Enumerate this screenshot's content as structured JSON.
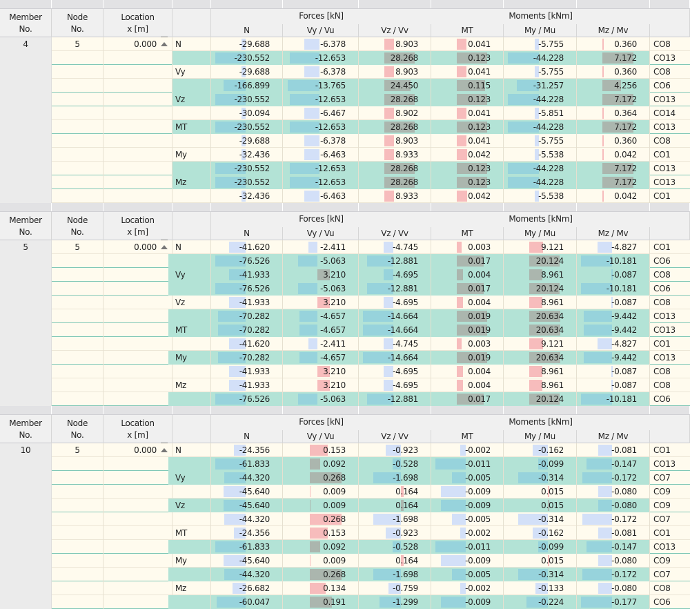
{
  "headers": {
    "member": [
      "Member",
      "No."
    ],
    "node": [
      "Node",
      "No."
    ],
    "location": [
      "Location",
      "x [m]"
    ],
    "forces": "Forces [kN]",
    "moments": "Moments [kNm]",
    "cols": [
      "N",
      "Vy / Vu",
      "Vz / Vv",
      "MT",
      "My / Mu",
      "Mz / Mv"
    ]
  },
  "colors": {
    "row_pale": "#fffbee",
    "row_green": "#b3e3d6",
    "bar_neg_pale": "#d3e0f8",
    "bar_pos_pale": "#f7bcbc",
    "bar_neg_green": "#97d3dc",
    "bar_pos_green": "#abb6ae",
    "header": "#f0f0f0"
  },
  "icons": {
    "location_marker": "support-arrow-icon"
  },
  "sections": [
    {
      "member": "4",
      "node": "5",
      "location": "0.000",
      "rows": [
        {
          "label": "N",
          "green": false,
          "values": [
            -29.688,
            -6.378,
            8.903,
            0.041,
            -5.755,
            0.36
          ],
          "text": [
            "-29.688",
            "-6.378",
            "8.903",
            "0.041",
            "-5.755",
            "0.360"
          ],
          "co": "CO8"
        },
        {
          "label": "",
          "green": true,
          "values": [
            -230.552,
            -12.653,
            28.268,
            0.123,
            -44.228,
            7.172
          ],
          "text": [
            "-230.552",
            "-12.653",
            "28.268",
            "0.123",
            "-44.228",
            "7.172"
          ],
          "co": "CO13"
        },
        {
          "label": "Vy",
          "green": false,
          "values": [
            -29.688,
            -6.378,
            8.903,
            0.041,
            -5.755,
            0.36
          ],
          "text": [
            "-29.688",
            "-6.378",
            "8.903",
            "0.041",
            "-5.755",
            "0.360"
          ],
          "co": "CO8"
        },
        {
          "label": "",
          "green": true,
          "values": [
            -166.899,
            -13.765,
            24.45,
            0.115,
            -31.257,
            4.256
          ],
          "text": [
            "-166.899",
            "-13.765",
            "24.450",
            "0.115",
            "-31.257",
            "4.256"
          ],
          "co": "CO6"
        },
        {
          "label": "Vz",
          "green": true,
          "values": [
            -230.552,
            -12.653,
            28.268,
            0.123,
            -44.228,
            7.172
          ],
          "text": [
            "-230.552",
            "-12.653",
            "28.268",
            "0.123",
            "-44.228",
            "7.172"
          ],
          "co": "CO13"
        },
        {
          "label": "",
          "green": false,
          "values": [
            -30.094,
            -6.467,
            8.902,
            0.041,
            -5.851,
            0.364
          ],
          "text": [
            "-30.094",
            "-6.467",
            "8.902",
            "0.041",
            "-5.851",
            "0.364"
          ],
          "co": "CO14"
        },
        {
          "label": "MT",
          "green": true,
          "values": [
            -230.552,
            -12.653,
            28.268,
            0.123,
            -44.228,
            7.172
          ],
          "text": [
            "-230.552",
            "-12.653",
            "28.268",
            "0.123",
            "-44.228",
            "7.172"
          ],
          "co": "CO13"
        },
        {
          "label": "",
          "green": false,
          "values": [
            -29.688,
            -6.378,
            8.903,
            0.041,
            -5.755,
            0.36
          ],
          "text": [
            "-29.688",
            "-6.378",
            "8.903",
            "0.041",
            "-5.755",
            "0.360"
          ],
          "co": "CO8"
        },
        {
          "label": "My",
          "green": false,
          "values": [
            -32.436,
            -6.463,
            8.933,
            0.042,
            -5.538,
            0.042
          ],
          "text": [
            "-32.436",
            "-6.463",
            "8.933",
            "0.042",
            "-5.538",
            "0.042"
          ],
          "co": "CO1"
        },
        {
          "label": "",
          "green": true,
          "values": [
            -230.552,
            -12.653,
            28.268,
            0.123,
            -44.228,
            7.172
          ],
          "text": [
            "-230.552",
            "-12.653",
            "28.268",
            "0.123",
            "-44.228",
            "7.172"
          ],
          "co": "CO13"
        },
        {
          "label": "Mz",
          "green": true,
          "values": [
            -230.552,
            -12.653,
            28.268,
            0.123,
            -44.228,
            7.172
          ],
          "text": [
            "-230.552",
            "-12.653",
            "28.268",
            "0.123",
            "-44.228",
            "7.172"
          ],
          "co": "CO13"
        },
        {
          "label": "",
          "green": false,
          "values": [
            -32.436,
            -6.463,
            8.933,
            0.042,
            -5.538,
            0.042
          ],
          "text": [
            "-32.436",
            "-6.463",
            "8.933",
            "0.042",
            "-5.538",
            "0.042"
          ],
          "co": "CO1"
        }
      ]
    },
    {
      "member": "5",
      "node": "5",
      "location": "0.000",
      "rows": [
        {
          "label": "N",
          "green": false,
          "values": [
            -41.62,
            -2.411,
            -4.745,
            0.003,
            9.121,
            -4.827
          ],
          "text": [
            "-41.620",
            "-2.411",
            "-4.745",
            "0.003",
            "9.121",
            "-4.827"
          ],
          "co": "CO1"
        },
        {
          "label": "",
          "green": true,
          "values": [
            -76.526,
            -5.063,
            -12.881,
            0.017,
            20.124,
            -10.181
          ],
          "text": [
            "-76.526",
            "-5.063",
            "-12.881",
            "0.017",
            "20.124",
            "-10.181"
          ],
          "co": "CO6"
        },
        {
          "label": "Vy",
          "green": true,
          "values": [
            -41.933,
            3.21,
            -4.695,
            0.004,
            8.961,
            -0.087
          ],
          "text": [
            "-41.933",
            "3.210",
            "-4.695",
            "0.004",
            "8.961",
            "-0.087"
          ],
          "co": "CO8"
        },
        {
          "label": "",
          "green": true,
          "values": [
            -76.526,
            -5.063,
            -12.881,
            0.017,
            20.124,
            -10.181
          ],
          "text": [
            "-76.526",
            "-5.063",
            "-12.881",
            "0.017",
            "20.124",
            "-10.181"
          ],
          "co": "CO6"
        },
        {
          "label": "Vz",
          "green": false,
          "values": [
            -41.933,
            3.21,
            -4.695,
            0.004,
            8.961,
            -0.087
          ],
          "text": [
            "-41.933",
            "3.210",
            "-4.695",
            "0.004",
            "8.961",
            "-0.087"
          ],
          "co": "CO8"
        },
        {
          "label": "",
          "green": true,
          "values": [
            -70.282,
            -4.657,
            -14.664,
            0.019,
            20.634,
            -9.442
          ],
          "text": [
            "-70.282",
            "-4.657",
            "-14.664",
            "0.019",
            "20.634",
            "-9.442"
          ],
          "co": "CO13"
        },
        {
          "label": "MT",
          "green": true,
          "values": [
            -70.282,
            -4.657,
            -14.664,
            0.019,
            20.634,
            -9.442
          ],
          "text": [
            "-70.282",
            "-4.657",
            "-14.664",
            "0.019",
            "20.634",
            "-9.442"
          ],
          "co": "CO13"
        },
        {
          "label": "",
          "green": false,
          "values": [
            -41.62,
            -2.411,
            -4.745,
            0.003,
            9.121,
            -4.827
          ],
          "text": [
            "-41.620",
            "-2.411",
            "-4.745",
            "0.003",
            "9.121",
            "-4.827"
          ],
          "co": "CO1"
        },
        {
          "label": "My",
          "green": true,
          "values": [
            -70.282,
            -4.657,
            -14.664,
            0.019,
            20.634,
            -9.442
          ],
          "text": [
            "-70.282",
            "-4.657",
            "-14.664",
            "0.019",
            "20.634",
            "-9.442"
          ],
          "co": "CO13"
        },
        {
          "label": "",
          "green": false,
          "values": [
            -41.933,
            3.21,
            -4.695,
            0.004,
            8.961,
            -0.087
          ],
          "text": [
            "-41.933",
            "3.210",
            "-4.695",
            "0.004",
            "8.961",
            "-0.087"
          ],
          "co": "CO8"
        },
        {
          "label": "Mz",
          "green": false,
          "values": [
            -41.933,
            3.21,
            -4.695,
            0.004,
            8.961,
            -0.087
          ],
          "text": [
            "-41.933",
            "3.210",
            "-4.695",
            "0.004",
            "8.961",
            "-0.087"
          ],
          "co": "CO8"
        },
        {
          "label": "",
          "green": true,
          "values": [
            -76.526,
            -5.063,
            -12.881,
            0.017,
            20.124,
            -10.181
          ],
          "text": [
            "-76.526",
            "-5.063",
            "-12.881",
            "0.017",
            "20.124",
            "-10.181"
          ],
          "co": "CO6"
        }
      ]
    },
    {
      "member": "10",
      "node": "5",
      "location": "0.000",
      "rows": [
        {
          "label": "N",
          "green": false,
          "values": [
            -24.356,
            0.153,
            -0.923,
            -0.002,
            -0.162,
            -0.081
          ],
          "text": [
            "-24.356",
            "0.153",
            "-0.923",
            "-0.002",
            "-0.162",
            "-0.081"
          ],
          "co": "CO1"
        },
        {
          "label": "",
          "green": true,
          "values": [
            -61.833,
            0.092,
            -0.528,
            -0.011,
            -0.099,
            -0.147
          ],
          "text": [
            "-61.833",
            "0.092",
            "-0.528",
            "-0.011",
            "-0.099",
            "-0.147"
          ],
          "co": "CO13"
        },
        {
          "label": "Vy",
          "green": true,
          "values": [
            -44.32,
            0.268,
            -1.698,
            -0.005,
            -0.314,
            -0.172
          ],
          "text": [
            "-44.320",
            "0.268",
            "-1.698",
            "-0.005",
            "-0.314",
            "-0.172"
          ],
          "co": "CO7"
        },
        {
          "label": "",
          "green": false,
          "values": [
            -45.64,
            0.009,
            0.164,
            -0.009,
            0.015,
            -0.08
          ],
          "text": [
            "-45.640",
            "0.009",
            "0.164",
            "-0.009",
            "0.015",
            "-0.080"
          ],
          "co": "CO9"
        },
        {
          "label": "Vz",
          "green": true,
          "values": [
            -45.64,
            0.009,
            0.164,
            -0.009,
            0.015,
            -0.08
          ],
          "text": [
            "-45.640",
            "0.009",
            "0.164",
            "-0.009",
            "0.015",
            "-0.080"
          ],
          "co": "CO9"
        },
        {
          "label": "",
          "green": false,
          "values": [
            -44.32,
            0.268,
            -1.698,
            -0.005,
            -0.314,
            -0.172
          ],
          "text": [
            "-44.320",
            "0.268",
            "-1.698",
            "-0.005",
            "-0.314",
            "-0.172"
          ],
          "co": "CO7"
        },
        {
          "label": "MT",
          "green": false,
          "values": [
            -24.356,
            0.153,
            -0.923,
            -0.002,
            -0.162,
            -0.081
          ],
          "text": [
            "-24.356",
            "0.153",
            "-0.923",
            "-0.002",
            "-0.162",
            "-0.081"
          ],
          "co": "CO1"
        },
        {
          "label": "",
          "green": true,
          "values": [
            -61.833,
            0.092,
            -0.528,
            -0.011,
            -0.099,
            -0.147
          ],
          "text": [
            "-61.833",
            "0.092",
            "-0.528",
            "-0.011",
            "-0.099",
            "-0.147"
          ],
          "co": "CO13"
        },
        {
          "label": "My",
          "green": false,
          "values": [
            -45.64,
            0.009,
            0.164,
            -0.009,
            0.015,
            -0.08
          ],
          "text": [
            "-45.640",
            "0.009",
            "0.164",
            "-0.009",
            "0.015",
            "-0.080"
          ],
          "co": "CO9"
        },
        {
          "label": "",
          "green": true,
          "values": [
            -44.32,
            0.268,
            -1.698,
            -0.005,
            -0.314,
            -0.172
          ],
          "text": [
            "-44.320",
            "0.268",
            "-1.698",
            "-0.005",
            "-0.314",
            "-0.172"
          ],
          "co": "CO7"
        },
        {
          "label": "Mz",
          "green": false,
          "values": [
            -26.682,
            0.134,
            -0.759,
            -0.002,
            -0.133,
            -0.08
          ],
          "text": [
            "-26.682",
            "0.134",
            "-0.759",
            "-0.002",
            "-0.133",
            "-0.080"
          ],
          "co": "CO8"
        },
        {
          "label": "",
          "green": true,
          "values": [
            -60.047,
            0.191,
            -1.299,
            -0.009,
            -0.224,
            -0.177
          ],
          "text": [
            "-60.047",
            "0.191",
            "-1.299",
            "-0.009",
            "-0.224",
            "-0.177"
          ],
          "co": "CO6"
        }
      ]
    }
  ]
}
